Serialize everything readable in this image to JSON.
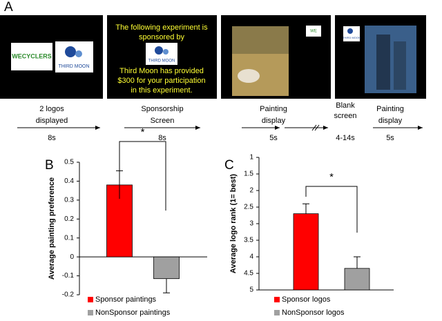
{
  "panel_a": {
    "label": "A",
    "screens": [
      {
        "logos": [
          "WECYCLERS",
          "THIRD MOON"
        ]
      },
      {
        "text_top": [
          "The following experiment is",
          "sponsored by"
        ],
        "logo": "THIRD MOON",
        "text_bottom": [
          "Third Moon has provided",
          "$300 for your participation",
          "in this experiment."
        ]
      },
      {
        "logo": "WE"
      },
      {
        "logo": "THIRD MOON"
      }
    ],
    "timeline": [
      {
        "label": [
          "2 logos",
          "displayed"
        ],
        "duration": "8s"
      },
      {
        "label": [
          "Sponsorship",
          "Screen"
        ],
        "duration": "8s"
      },
      {
        "label": [
          "Painting",
          "display"
        ],
        "duration": "5s"
      },
      {
        "label": [
          "Blank",
          "screen"
        ],
        "duration": "4-14s"
      },
      {
        "label": [
          "Painting",
          "display"
        ],
        "duration": "5s"
      }
    ]
  },
  "chart_data": [
    {
      "type": "bar",
      "panel": "B",
      "y_label": "Average painting preference",
      "categories": [
        "Sponsor paintings",
        "NonSponsor paintings"
      ],
      "values": [
        0.38,
        -0.115
      ],
      "errors": [
        0.075,
        0.075
      ],
      "colors": [
        "#ff0000",
        "#a0a0a0"
      ],
      "ylim": [
        -0.2,
        0.5
      ],
      "yticks": [
        0.5,
        0.4,
        0.3,
        0.2,
        0.1,
        0,
        -0.1,
        -0.2
      ],
      "significance": "*"
    },
    {
      "type": "bar",
      "panel": "C",
      "y_label": "Average logo rank (1= best)",
      "categories": [
        "Sponsor logos",
        "NonSponsor logos"
      ],
      "values": [
        2.7,
        4.35
      ],
      "errors": [
        0.3,
        0.35
      ],
      "colors": [
        "#ff0000",
        "#a0a0a0"
      ],
      "ylim": [
        5,
        1
      ],
      "inverted": true,
      "yticks": [
        1,
        1.5,
        2,
        2.5,
        3,
        3.5,
        4,
        4.5,
        5
      ],
      "significance": "*"
    }
  ]
}
